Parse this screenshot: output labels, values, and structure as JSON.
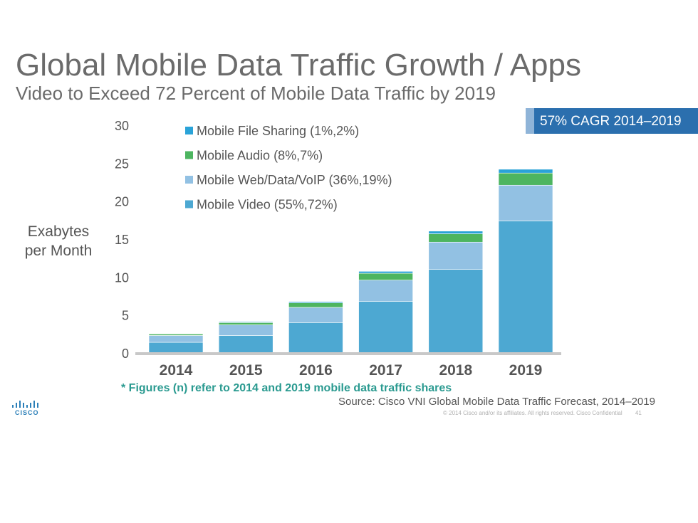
{
  "slide": {
    "title": "Global Mobile Data Traffic Growth / Apps",
    "subtitle": "Video to Exceed 72 Percent of Mobile Data Traffic by 2019",
    "cagr_badge": "57% CAGR 2014–2019",
    "footnote": "* Figures (n) refer to 2014 and 2019 mobile data traffic shares",
    "source": "Source: Cisco VNI Global Mobile Data Traffic Forecast, 2014–2019",
    "copyright": "© 2014  Cisco and/or its affiliates. All rights reserved.   Cisco Confidential",
    "page_number": "41",
    "logo_text": "CISCO"
  },
  "chart_data": {
    "type": "bar",
    "stacked": true,
    "ylabel": "Exabytes\nper Month",
    "ylim": [
      0,
      30
    ],
    "yticks": [
      0,
      5,
      10,
      15,
      20,
      25,
      30
    ],
    "categories": [
      "2014",
      "2015",
      "2016",
      "2017",
      "2018",
      "2019"
    ],
    "series": [
      {
        "name": "Mobile Video (55%,72%)",
        "color": "#4da8d2",
        "values": [
          1.4,
          2.3,
          4.0,
          6.8,
          11.0,
          17.4
        ]
      },
      {
        "name": "Mobile Web/Data/VoIP (36%,19%)",
        "color": "#92c1e3",
        "values": [
          0.9,
          1.4,
          2.0,
          2.8,
          3.6,
          4.7
        ]
      },
      {
        "name": "Mobile Audio (8%,7%)",
        "color": "#4db560",
        "values": [
          0.2,
          0.3,
          0.6,
          0.9,
          1.1,
          1.6
        ]
      },
      {
        "name": "Mobile File Sharing (1%,2%)",
        "color": "#2aa3d8",
        "values": [
          0.05,
          0.1,
          0.15,
          0.25,
          0.35,
          0.5
        ]
      }
    ],
    "legend_order": [
      3,
      2,
      1,
      0
    ],
    "legend_position": "top-left"
  }
}
